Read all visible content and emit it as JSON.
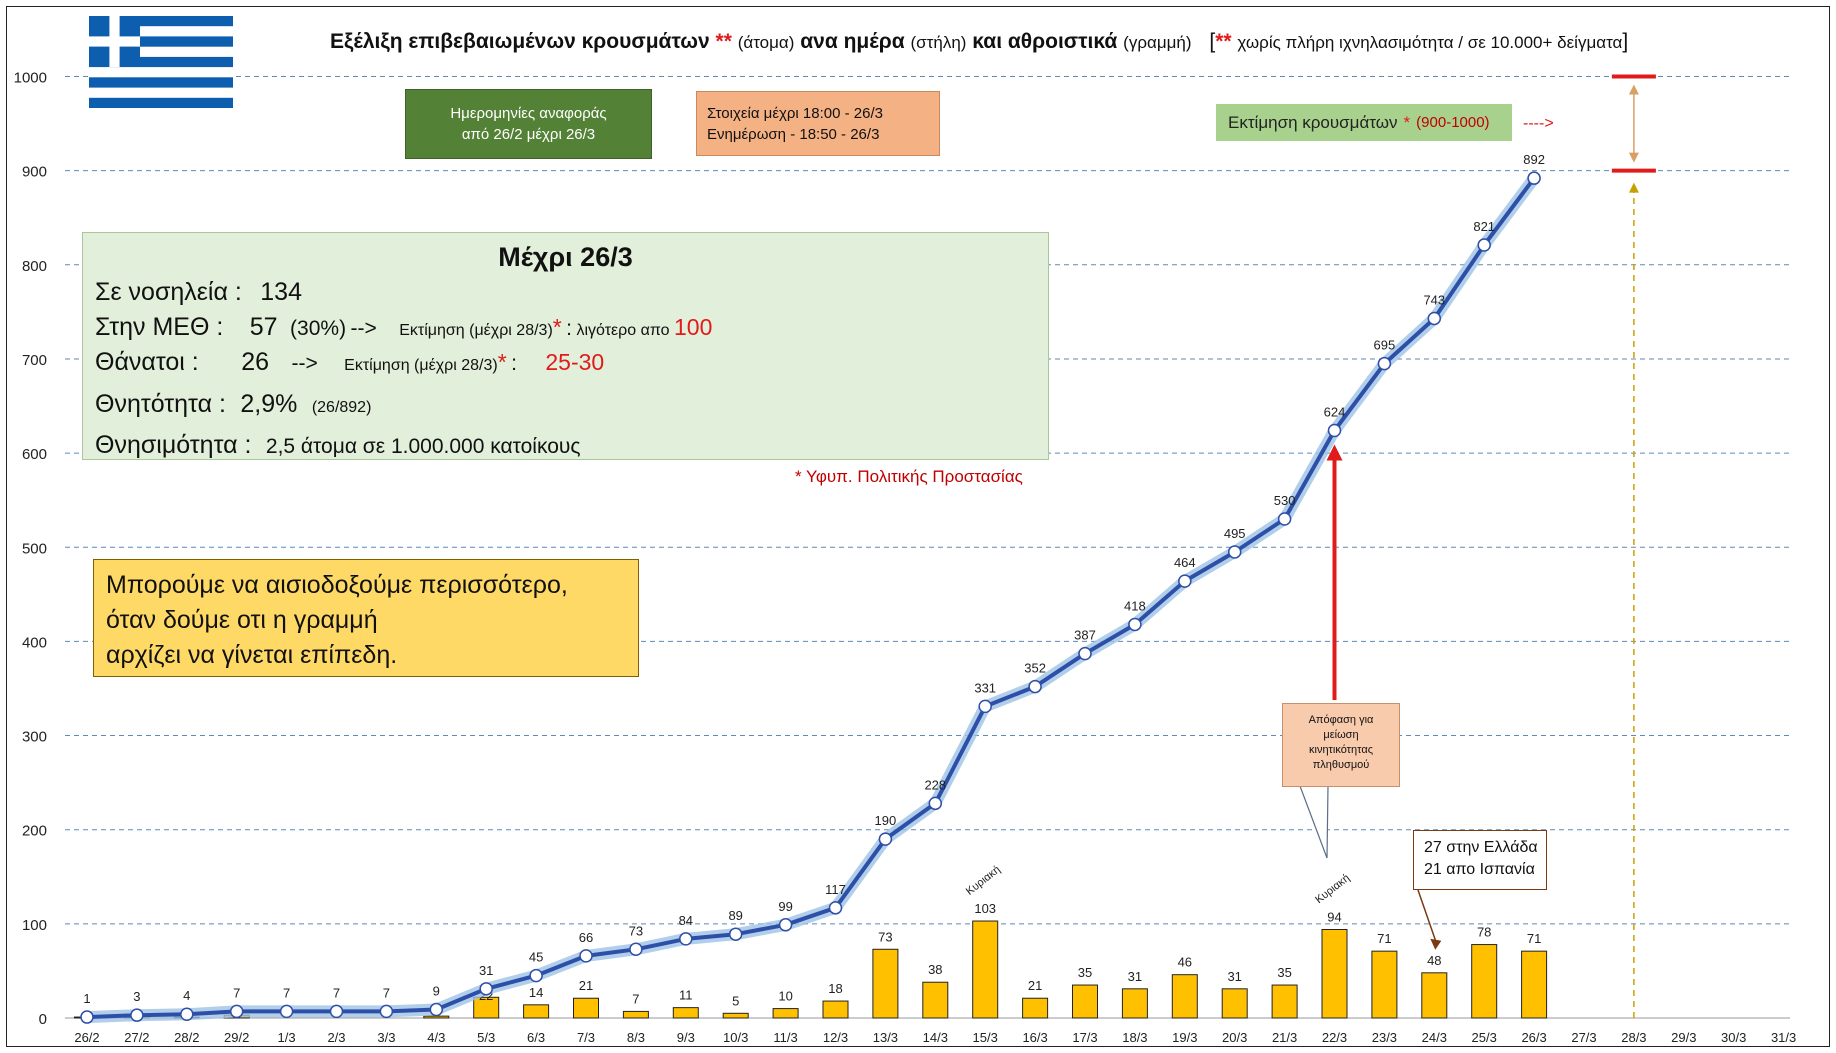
{
  "title": {
    "part1": "Εξέλιξη επιβεβαιωμένων κρουσμάτων",
    "stars1": "**",
    "part2": "(άτομα)",
    "part3": "ανα ημέρα",
    "part4": "(στήλη)",
    "part5": "και αθροιστικά",
    "part6": "(γραμμή)",
    "bracket_open": "[",
    "stars2": "**",
    "part7": "χωρίς πλήρη ιχνηλασιμότητα / σε 10.000+ δείγματα",
    "bracket_close": "]"
  },
  "box_dates": {
    "line1": "Ημερομηνίες αναφοράς",
    "line2": "από 26/2 μέχρι 26/3"
  },
  "box_update": {
    "line1": "Στοιχεία μέχρι  18:00 - 26/3",
    "line2": "Ενημέρωση  -  18:50 - 26/3"
  },
  "estimate_box": {
    "label": "Εκτίμηση κρουσμάτων",
    "star": "*",
    "range": "(900-1000)",
    "arrow": "---->"
  },
  "stats": {
    "heading": "Μέχρι 26/3",
    "hosp_label": "Σε νοσηλεία :",
    "hosp_value": "134",
    "icu_label": "Στην ΜΕΘ :",
    "icu_value": "57",
    "icu_pct": "(30%)",
    "icu_arrow": "-->",
    "icu_est": "Εκτίμηση (μέχρι 28/3)",
    "icu_star": "*",
    "icu_colon": ":",
    "icu_est_text": "λιγότερο απο",
    "icu_est_value": "100",
    "deaths_label": "Θάνατοι :",
    "deaths_value": "26",
    "deaths_arrow": "-->",
    "deaths_est": "Εκτίμηση (μέχρι 28/3)",
    "deaths_star": "*",
    "deaths_colon": ":",
    "deaths_est_value": "25-30",
    "cfr_label": "Θνητότητα :",
    "cfr_value": "2,9%",
    "cfr_detail": "(26/892)",
    "mort_label": "Θνησιμότητα :",
    "mort_value": "2,5 άτομα σε 1.000.000 κατοίκους"
  },
  "source_note": "* Υφυπ. Πολιτικής Προστασίας",
  "hope_note": {
    "line1": "Μπορούμε να αισιοδοξούμε περισσότερο,",
    "line2": "όταν δούμε οτι η γραμμή",
    "line3": "αρχίζει να γίνεται επίπεδη."
  },
  "callout": {
    "line1": "Απόφαση για",
    "line2": "μείωση",
    "line3": "κινητικότητας",
    "line4": "πληθυσμού"
  },
  "spain_note": {
    "line1": "27 στην Ελλάδα",
    "line2": "21 απο Ισπανία"
  },
  "sunday_label": "Κυριακή",
  "colors": {
    "line": "#2e4fa8",
    "line_glow": "#9dc3e6",
    "bar": "#ffc000",
    "bar_edge": "#222222",
    "grid": "#5b8bb8",
    "red": "#e01b1b"
  },
  "chart_data": {
    "type": "bar",
    "categories": [
      "26/2",
      "27/2",
      "28/2",
      "29/2",
      "1/3",
      "2/3",
      "3/3",
      "4/3",
      "5/3",
      "6/3",
      "7/3",
      "8/3",
      "9/3",
      "10/3",
      "11/3",
      "12/3",
      "13/3",
      "14/3",
      "15/3",
      "16/3",
      "17/3",
      "18/3",
      "19/3",
      "20/3",
      "21/3",
      "22/3",
      "23/3",
      "24/3",
      "25/3",
      "26/3",
      "27/3",
      "28/3",
      "29/3",
      "30/3",
      "31/3"
    ],
    "ylim": [
      0,
      1000
    ],
    "yticks": [
      0,
      100,
      200,
      300,
      400,
      500,
      600,
      700,
      800,
      900,
      1000
    ],
    "grid": true,
    "series": [
      {
        "type": "bar",
        "values": [
          1,
          2,
          1,
          3,
          0,
          0,
          0,
          2,
          22,
          14,
          21,
          7,
          11,
          5,
          10,
          18,
          73,
          38,
          103,
          21,
          35,
          31,
          46,
          31,
          35,
          94,
          71,
          48,
          78,
          71,
          null,
          null,
          null,
          null,
          null
        ],
        "value_labels": [
          null,
          null,
          null,
          null,
          null,
          null,
          null,
          null,
          "22",
          "14",
          "21",
          "7",
          "11",
          "5",
          "10",
          "18",
          "73",
          "38",
          "103",
          "21",
          "35",
          "31",
          "46",
          "31",
          "35",
          "94",
          "71",
          "48",
          "78",
          "71",
          null,
          null,
          null,
          null,
          null
        ]
      },
      {
        "type": "line",
        "values": [
          1,
          3,
          4,
          7,
          7,
          7,
          7,
          9,
          31,
          45,
          66,
          73,
          84,
          89,
          99,
          117,
          190,
          228,
          331,
          352,
          387,
          418,
          464,
          495,
          530,
          624,
          695,
          743,
          821,
          892,
          null,
          null,
          null,
          null,
          null
        ],
        "value_labels": [
          "1",
          "3",
          "4",
          "7",
          "7",
          "7",
          "7",
          "9",
          "31",
          "45",
          "66",
          "73",
          "84",
          "89",
          "99",
          "117",
          "190",
          "228",
          "331",
          "352",
          "387",
          "418",
          "464",
          "495",
          "530",
          "624",
          "695",
          "743",
          "821",
          "892",
          null,
          null,
          null,
          null,
          null
        ]
      }
    ],
    "estimate_range": [
      900,
      1000
    ]
  }
}
